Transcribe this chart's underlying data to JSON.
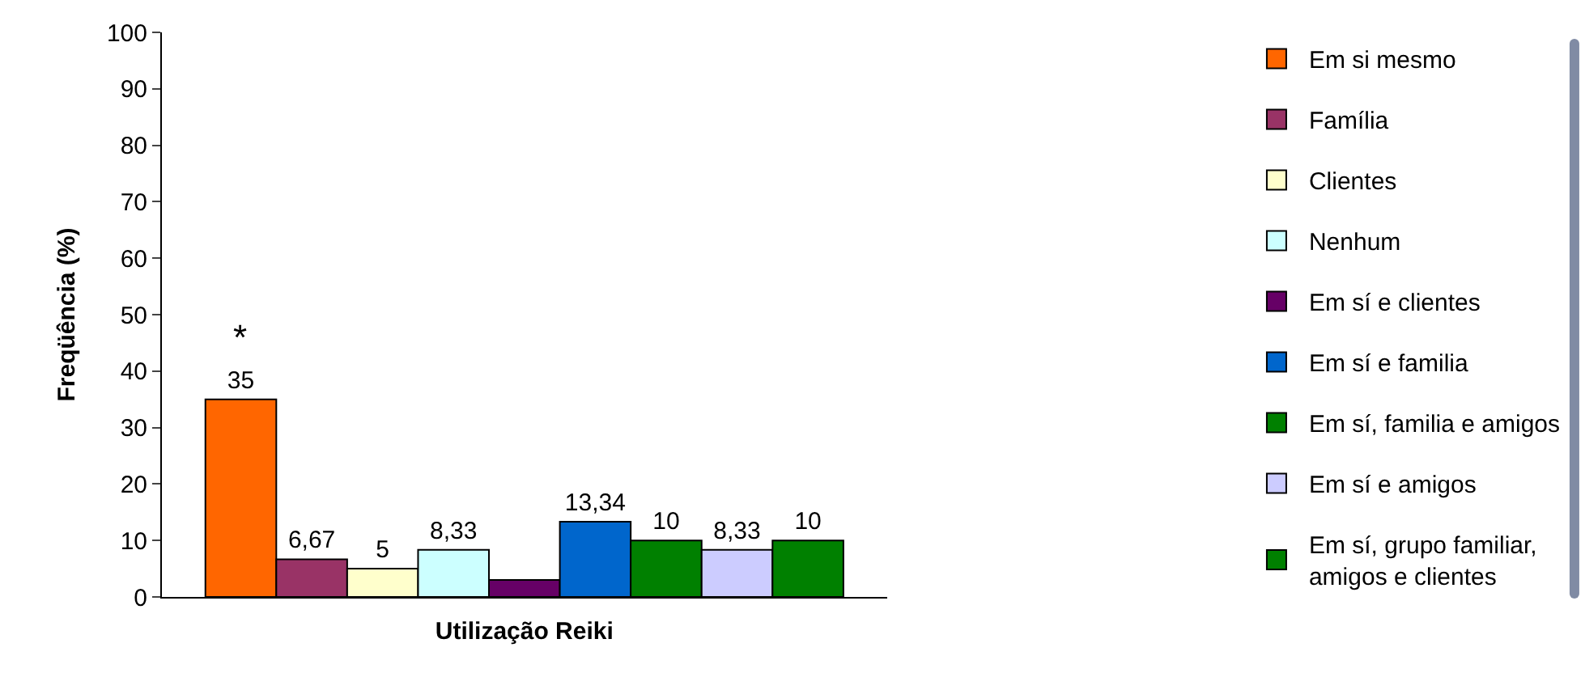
{
  "chart_data": {
    "type": "bar",
    "xlabel": "Utilização Reiki",
    "ylabel": "Freqüência (%)",
    "categories": [
      null
    ],
    "series": [
      {
        "name": "Em si mesmo",
        "color": "#ff6600",
        "values": [
          35
        ],
        "value_labels": [
          "35"
        ]
      },
      {
        "name": "Família",
        "color": "#993366",
        "values": [
          6.67
        ],
        "value_labels": [
          "6,67"
        ]
      },
      {
        "name": "Clientes",
        "color": "#ffffcc",
        "values": [
          5
        ],
        "value_labels": [
          "5"
        ]
      },
      {
        "name": "Nenhum",
        "color": "#ccffff",
        "values": [
          8.33
        ],
        "value_labels": [
          "8,33"
        ]
      },
      {
        "name": "Em sí e clientes",
        "color": "#660066",
        "values": [
          3
        ],
        "value_labels": [
          null
        ]
      },
      {
        "name": "Em sí e familia",
        "color": "#0066cc",
        "values": [
          13.34
        ],
        "value_labels": [
          "13,34"
        ]
      },
      {
        "name": "Em sí, familia e amigos",
        "color": "#008000",
        "values": [
          10
        ],
        "value_labels": [
          "10"
        ]
      },
      {
        "name": "Em sí e amigos",
        "color": "#ccccff",
        "values": [
          8.33
        ],
        "value_labels": [
          "8,33"
        ]
      },
      {
        "name": "Em sí, grupo familiar,\namigos e clientes",
        "color": "#008000",
        "values": [
          10
        ],
        "value_labels": [
          "10"
        ]
      }
    ],
    "annotations": [
      "*"
    ],
    "ylim": [
      0,
      100
    ],
    "yticks": [
      0,
      10,
      20,
      30,
      40,
      50,
      60,
      70,
      80,
      90,
      100
    ],
    "tick_labels": "y",
    "grid": false,
    "legend": "right"
  }
}
